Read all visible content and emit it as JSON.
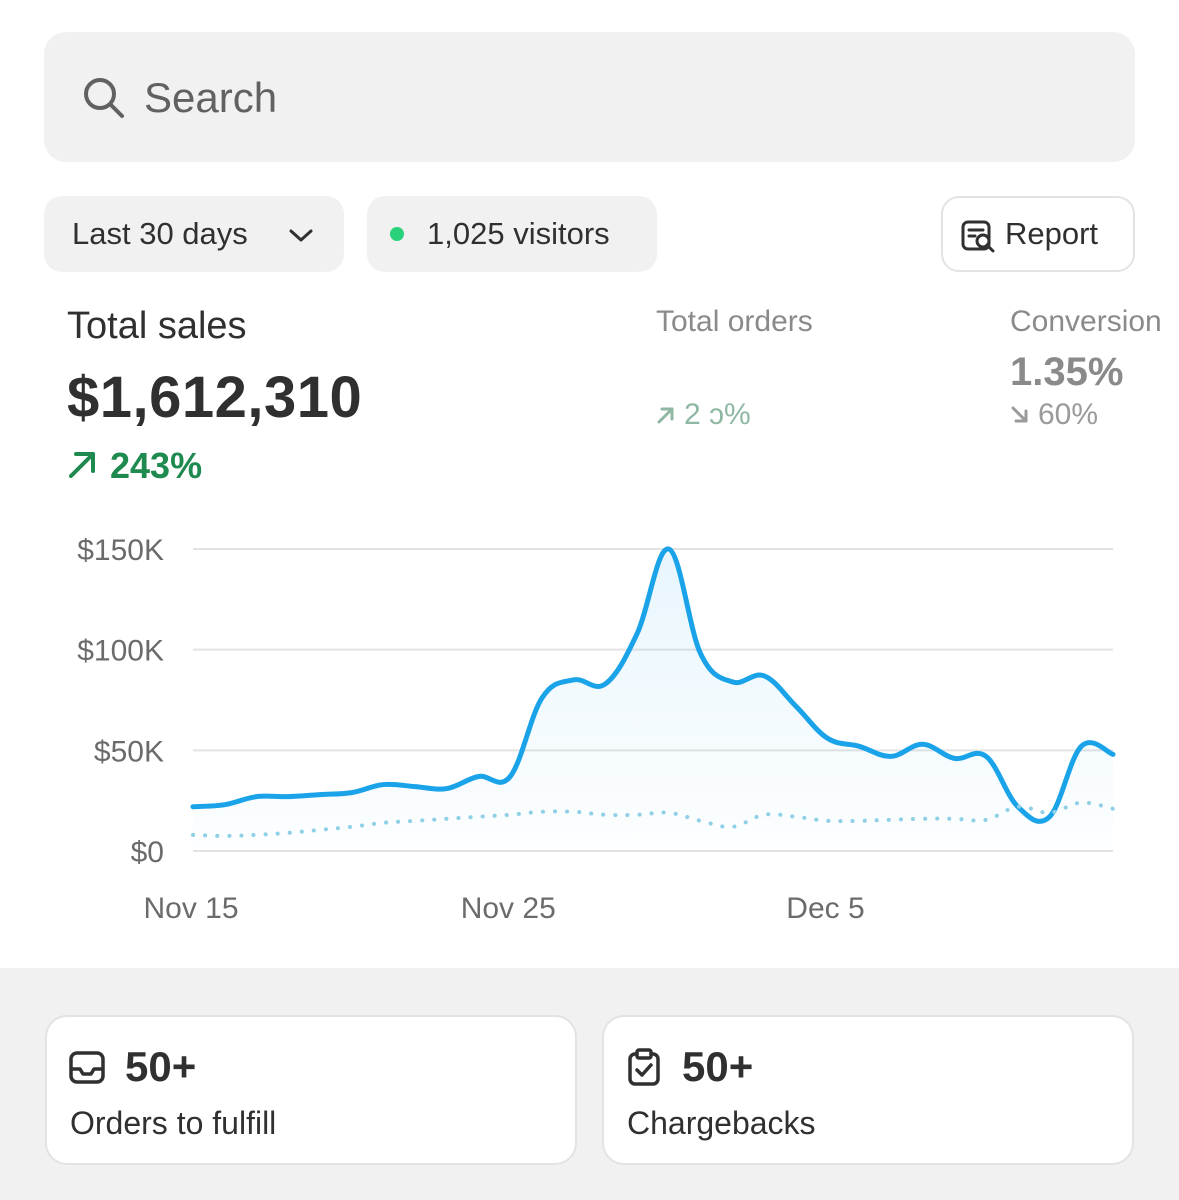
{
  "search": {
    "placeholder": "Search",
    "icon": "search-icon"
  },
  "filters": {
    "date_range": {
      "label": "Last 30 days",
      "icon": "chevron-down-icon"
    },
    "visitors": {
      "label": "1,025 visitors",
      "status_color": "#29d27a"
    },
    "report": {
      "label": "Report",
      "icon": "report-icon"
    }
  },
  "metrics": {
    "total_sales": {
      "title": "Total sales",
      "value": "$1,612,310",
      "change": "243%",
      "direction": "up",
      "color": "#1e8a4f"
    },
    "total_orders": {
      "title": "Total orders",
      "change": "2  ɔ%",
      "direction": "up"
    },
    "conversion": {
      "title": "Conversion",
      "value": "1.35%",
      "change": "60%",
      "direction": "down"
    }
  },
  "colors": {
    "accent": "#1aa3e8",
    "comparison": "#8fd0e6",
    "positive": "#1e8a4f"
  },
  "chart_data": {
    "type": "line",
    "x_tick_labels": [
      "Nov 15",
      "Nov 25",
      "Dec 5"
    ],
    "y_tick_labels": [
      "$150K",
      "$100K",
      "$50K",
      "$0"
    ],
    "ylim": [
      0,
      150000
    ],
    "grid": true,
    "series": [
      {
        "style": "solid",
        "x": [
          "Nov 15",
          "Nov 16",
          "Nov 17",
          "Nov 18",
          "Nov 19",
          "Nov 20",
          "Nov 21",
          "Nov 22",
          "Nov 23",
          "Nov 24",
          "Nov 25",
          "Nov 26",
          "Nov 27",
          "Nov 28",
          "Nov 29",
          "Nov 30",
          "Dec 1",
          "Dec 2",
          "Dec 3",
          "Dec 4",
          "Dec 5",
          "Dec 6",
          "Dec 7",
          "Dec 8",
          "Dec 9",
          "Dec 10",
          "Dec 11",
          "Dec 12",
          "Dec 13",
          "Dec 14"
        ],
        "values": [
          22000,
          23000,
          27000,
          27000,
          28000,
          29000,
          33000,
          32000,
          31000,
          37000,
          37000,
          76000,
          85000,
          83000,
          108000,
          150000,
          98000,
          84000,
          87000,
          72000,
          56000,
          52000,
          47000,
          53000,
          46000,
          47000,
          22000,
          17000,
          52000,
          48000
        ]
      },
      {
        "style": "dotted",
        "x": [
          "Nov 15",
          "Nov 16",
          "Nov 17",
          "Nov 18",
          "Nov 19",
          "Nov 20",
          "Nov 21",
          "Nov 22",
          "Nov 23",
          "Nov 24",
          "Nov 25",
          "Nov 26",
          "Nov 27",
          "Nov 28",
          "Nov 29",
          "Nov 30",
          "Dec 1",
          "Dec 2",
          "Dec 3",
          "Dec 4",
          "Dec 5",
          "Dec 6",
          "Dec 7",
          "Dec 8",
          "Dec 9",
          "Dec 10",
          "Dec 11",
          "Dec 12",
          "Dec 13",
          "Dec 14"
        ],
        "values": [
          8000,
          7500,
          8000,
          9000,
          10500,
          12000,
          14000,
          15000,
          16000,
          17000,
          18000,
          19500,
          19500,
          18000,
          18000,
          19000,
          15000,
          12000,
          18000,
          17000,
          15000,
          15000,
          15500,
          16000,
          16000,
          15500,
          22000,
          19000,
          24000,
          21000
        ]
      }
    ]
  },
  "cards": [
    {
      "count": "50+",
      "label": "Orders to fulfill",
      "icon": "inbox-icon"
    },
    {
      "count": "50+",
      "label": "Chargebacks",
      "icon": "clipboard-check-icon"
    }
  ]
}
